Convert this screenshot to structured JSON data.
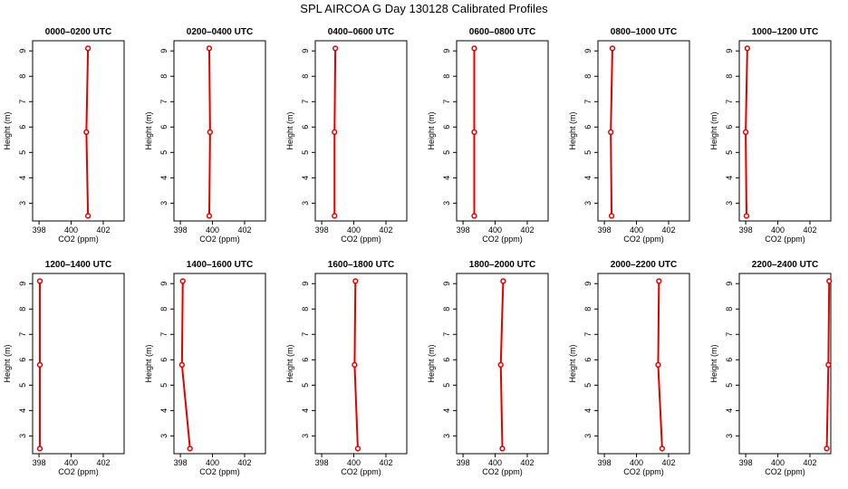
{
  "figure": {
    "title": "SPL AIRCOA G  Day 130128  Calibrated Profiles"
  },
  "colors": {
    "series": "#e00000",
    "axis": "#000000"
  },
  "chart_data": [
    {
      "type": "line",
      "title": "0000–0200 UTC",
      "xlabel": "CO2 (ppm)",
      "ylabel": "Height (m)",
      "xlim": [
        397.6,
        403.3
      ],
      "ylim": [
        2.3,
        9.4
      ],
      "xticks": [
        398,
        400,
        402
      ],
      "yticks": [
        3,
        4,
        5,
        6,
        7,
        8,
        9
      ],
      "grid": false,
      "points": [
        {
          "x": 401.05,
          "y": 2.5
        },
        {
          "x": 400.95,
          "y": 5.8
        },
        {
          "x": 401.05,
          "y": 9.1
        }
      ]
    },
    {
      "type": "line",
      "title": "0200–0400 UTC",
      "xlabel": "CO2 (ppm)",
      "ylabel": "Height (m)",
      "xlim": [
        397.6,
        403.3
      ],
      "ylim": [
        2.3,
        9.4
      ],
      "xticks": [
        398,
        400,
        402
      ],
      "yticks": [
        3,
        4,
        5,
        6,
        7,
        8,
        9
      ],
      "grid": false,
      "points": [
        {
          "x": 399.8,
          "y": 2.5
        },
        {
          "x": 399.85,
          "y": 5.8
        },
        {
          "x": 399.8,
          "y": 9.1
        }
      ]
    },
    {
      "type": "line",
      "title": "0400–0600 UTC",
      "xlabel": "CO2 (ppm)",
      "ylabel": "Height (m)",
      "xlim": [
        397.6,
        403.3
      ],
      "ylim": [
        2.3,
        9.4
      ],
      "xticks": [
        398,
        400,
        402
      ],
      "yticks": [
        3,
        4,
        5,
        6,
        7,
        8,
        9
      ],
      "grid": false,
      "points": [
        {
          "x": 398.8,
          "y": 2.5
        },
        {
          "x": 398.8,
          "y": 5.8
        },
        {
          "x": 398.85,
          "y": 9.1
        }
      ]
    },
    {
      "type": "line",
      "title": "0600–0800 UTC",
      "xlabel": "CO2 (ppm)",
      "ylabel": "Height (m)",
      "xlim": [
        397.6,
        403.3
      ],
      "ylim": [
        2.3,
        9.4
      ],
      "xticks": [
        398,
        400,
        402
      ],
      "yticks": [
        3,
        4,
        5,
        6,
        7,
        8,
        9
      ],
      "grid": false,
      "points": [
        {
          "x": 398.7,
          "y": 2.5
        },
        {
          "x": 398.7,
          "y": 5.8
        },
        {
          "x": 398.7,
          "y": 9.1
        }
      ]
    },
    {
      "type": "line",
      "title": "0800–1000 UTC",
      "xlabel": "CO2 (ppm)",
      "ylabel": "Height (m)",
      "xlim": [
        397.6,
        403.3
      ],
      "ylim": [
        2.3,
        9.4
      ],
      "xticks": [
        398,
        400,
        402
      ],
      "yticks": [
        3,
        4,
        5,
        6,
        7,
        8,
        9
      ],
      "grid": false,
      "points": [
        {
          "x": 398.45,
          "y": 2.5
        },
        {
          "x": 398.4,
          "y": 5.8
        },
        {
          "x": 398.5,
          "y": 9.1
        }
      ]
    },
    {
      "type": "line",
      "title": "1000–1200 UTC",
      "xlabel": "CO2 (ppm)",
      "ylabel": "Height (m)",
      "xlim": [
        397.6,
        403.3
      ],
      "ylim": [
        2.3,
        9.4
      ],
      "xticks": [
        398,
        400,
        402
      ],
      "yticks": [
        3,
        4,
        5,
        6,
        7,
        8,
        9
      ],
      "grid": false,
      "points": [
        {
          "x": 398.05,
          "y": 2.5
        },
        {
          "x": 398.0,
          "y": 5.8
        },
        {
          "x": 398.1,
          "y": 9.1
        }
      ]
    },
    {
      "type": "line",
      "title": "1200–1400 UTC",
      "xlabel": "CO2 (ppm)",
      "ylabel": "Height (m)",
      "xlim": [
        397.6,
        403.3
      ],
      "ylim": [
        2.3,
        9.4
      ],
      "xticks": [
        398,
        400,
        402
      ],
      "yticks": [
        3,
        4,
        5,
        6,
        7,
        8,
        9
      ],
      "grid": false,
      "points": [
        {
          "x": 398.05,
          "y": 2.5
        },
        {
          "x": 398.05,
          "y": 5.8
        },
        {
          "x": 398.05,
          "y": 9.1
        }
      ]
    },
    {
      "type": "line",
      "title": "1400–1600 UTC",
      "xlabel": "CO2 (ppm)",
      "ylabel": "Height (m)",
      "xlim": [
        397.6,
        403.3
      ],
      "ylim": [
        2.3,
        9.4
      ],
      "xticks": [
        398,
        400,
        402
      ],
      "yticks": [
        3,
        4,
        5,
        6,
        7,
        8,
        9
      ],
      "grid": false,
      "points": [
        {
          "x": 398.6,
          "y": 2.5
        },
        {
          "x": 398.1,
          "y": 5.8
        },
        {
          "x": 398.15,
          "y": 9.1
        }
      ]
    },
    {
      "type": "line",
      "title": "1600–1800 UTC",
      "xlabel": "CO2 (ppm)",
      "ylabel": "Height (m)",
      "xlim": [
        397.6,
        403.3
      ],
      "ylim": [
        2.3,
        9.4
      ],
      "xticks": [
        398,
        400,
        402
      ],
      "yticks": [
        3,
        4,
        5,
        6,
        7,
        8,
        9
      ],
      "grid": false,
      "points": [
        {
          "x": 400.25,
          "y": 2.5
        },
        {
          "x": 400.05,
          "y": 5.8
        },
        {
          "x": 400.1,
          "y": 9.1
        }
      ]
    },
    {
      "type": "line",
      "title": "1800–2000 UTC",
      "xlabel": "CO2 (ppm)",
      "ylabel": "Height (m)",
      "xlim": [
        397.6,
        403.3
      ],
      "ylim": [
        2.3,
        9.4
      ],
      "xticks": [
        398,
        400,
        402
      ],
      "yticks": [
        3,
        4,
        5,
        6,
        7,
        8,
        9
      ],
      "grid": false,
      "points": [
        {
          "x": 400.45,
          "y": 2.5
        },
        {
          "x": 400.35,
          "y": 5.8
        },
        {
          "x": 400.5,
          "y": 9.1
        }
      ]
    },
    {
      "type": "line",
      "title": "2000–2200 UTC",
      "xlabel": "CO2 (ppm)",
      "ylabel": "Height (m)",
      "xlim": [
        397.6,
        403.3
      ],
      "ylim": [
        2.3,
        9.4
      ],
      "xticks": [
        398,
        400,
        402
      ],
      "yticks": [
        3,
        4,
        5,
        6,
        7,
        8,
        9
      ],
      "grid": false,
      "points": [
        {
          "x": 401.6,
          "y": 2.5
        },
        {
          "x": 401.35,
          "y": 5.8
        },
        {
          "x": 401.4,
          "y": 9.1
        }
      ]
    },
    {
      "type": "line",
      "title": "2200–2400 UTC",
      "xlabel": "CO2 (ppm)",
      "ylabel": "Height (m)",
      "xlim": [
        397.6,
        403.3
      ],
      "ylim": [
        2.3,
        9.4
      ],
      "xticks": [
        398,
        400,
        402
      ],
      "yticks": [
        3,
        4,
        5,
        6,
        7,
        8,
        9
      ],
      "grid": false,
      "points": [
        {
          "x": 403.05,
          "y": 2.5
        },
        {
          "x": 403.15,
          "y": 5.8
        },
        {
          "x": 403.2,
          "y": 9.1
        }
      ]
    }
  ]
}
